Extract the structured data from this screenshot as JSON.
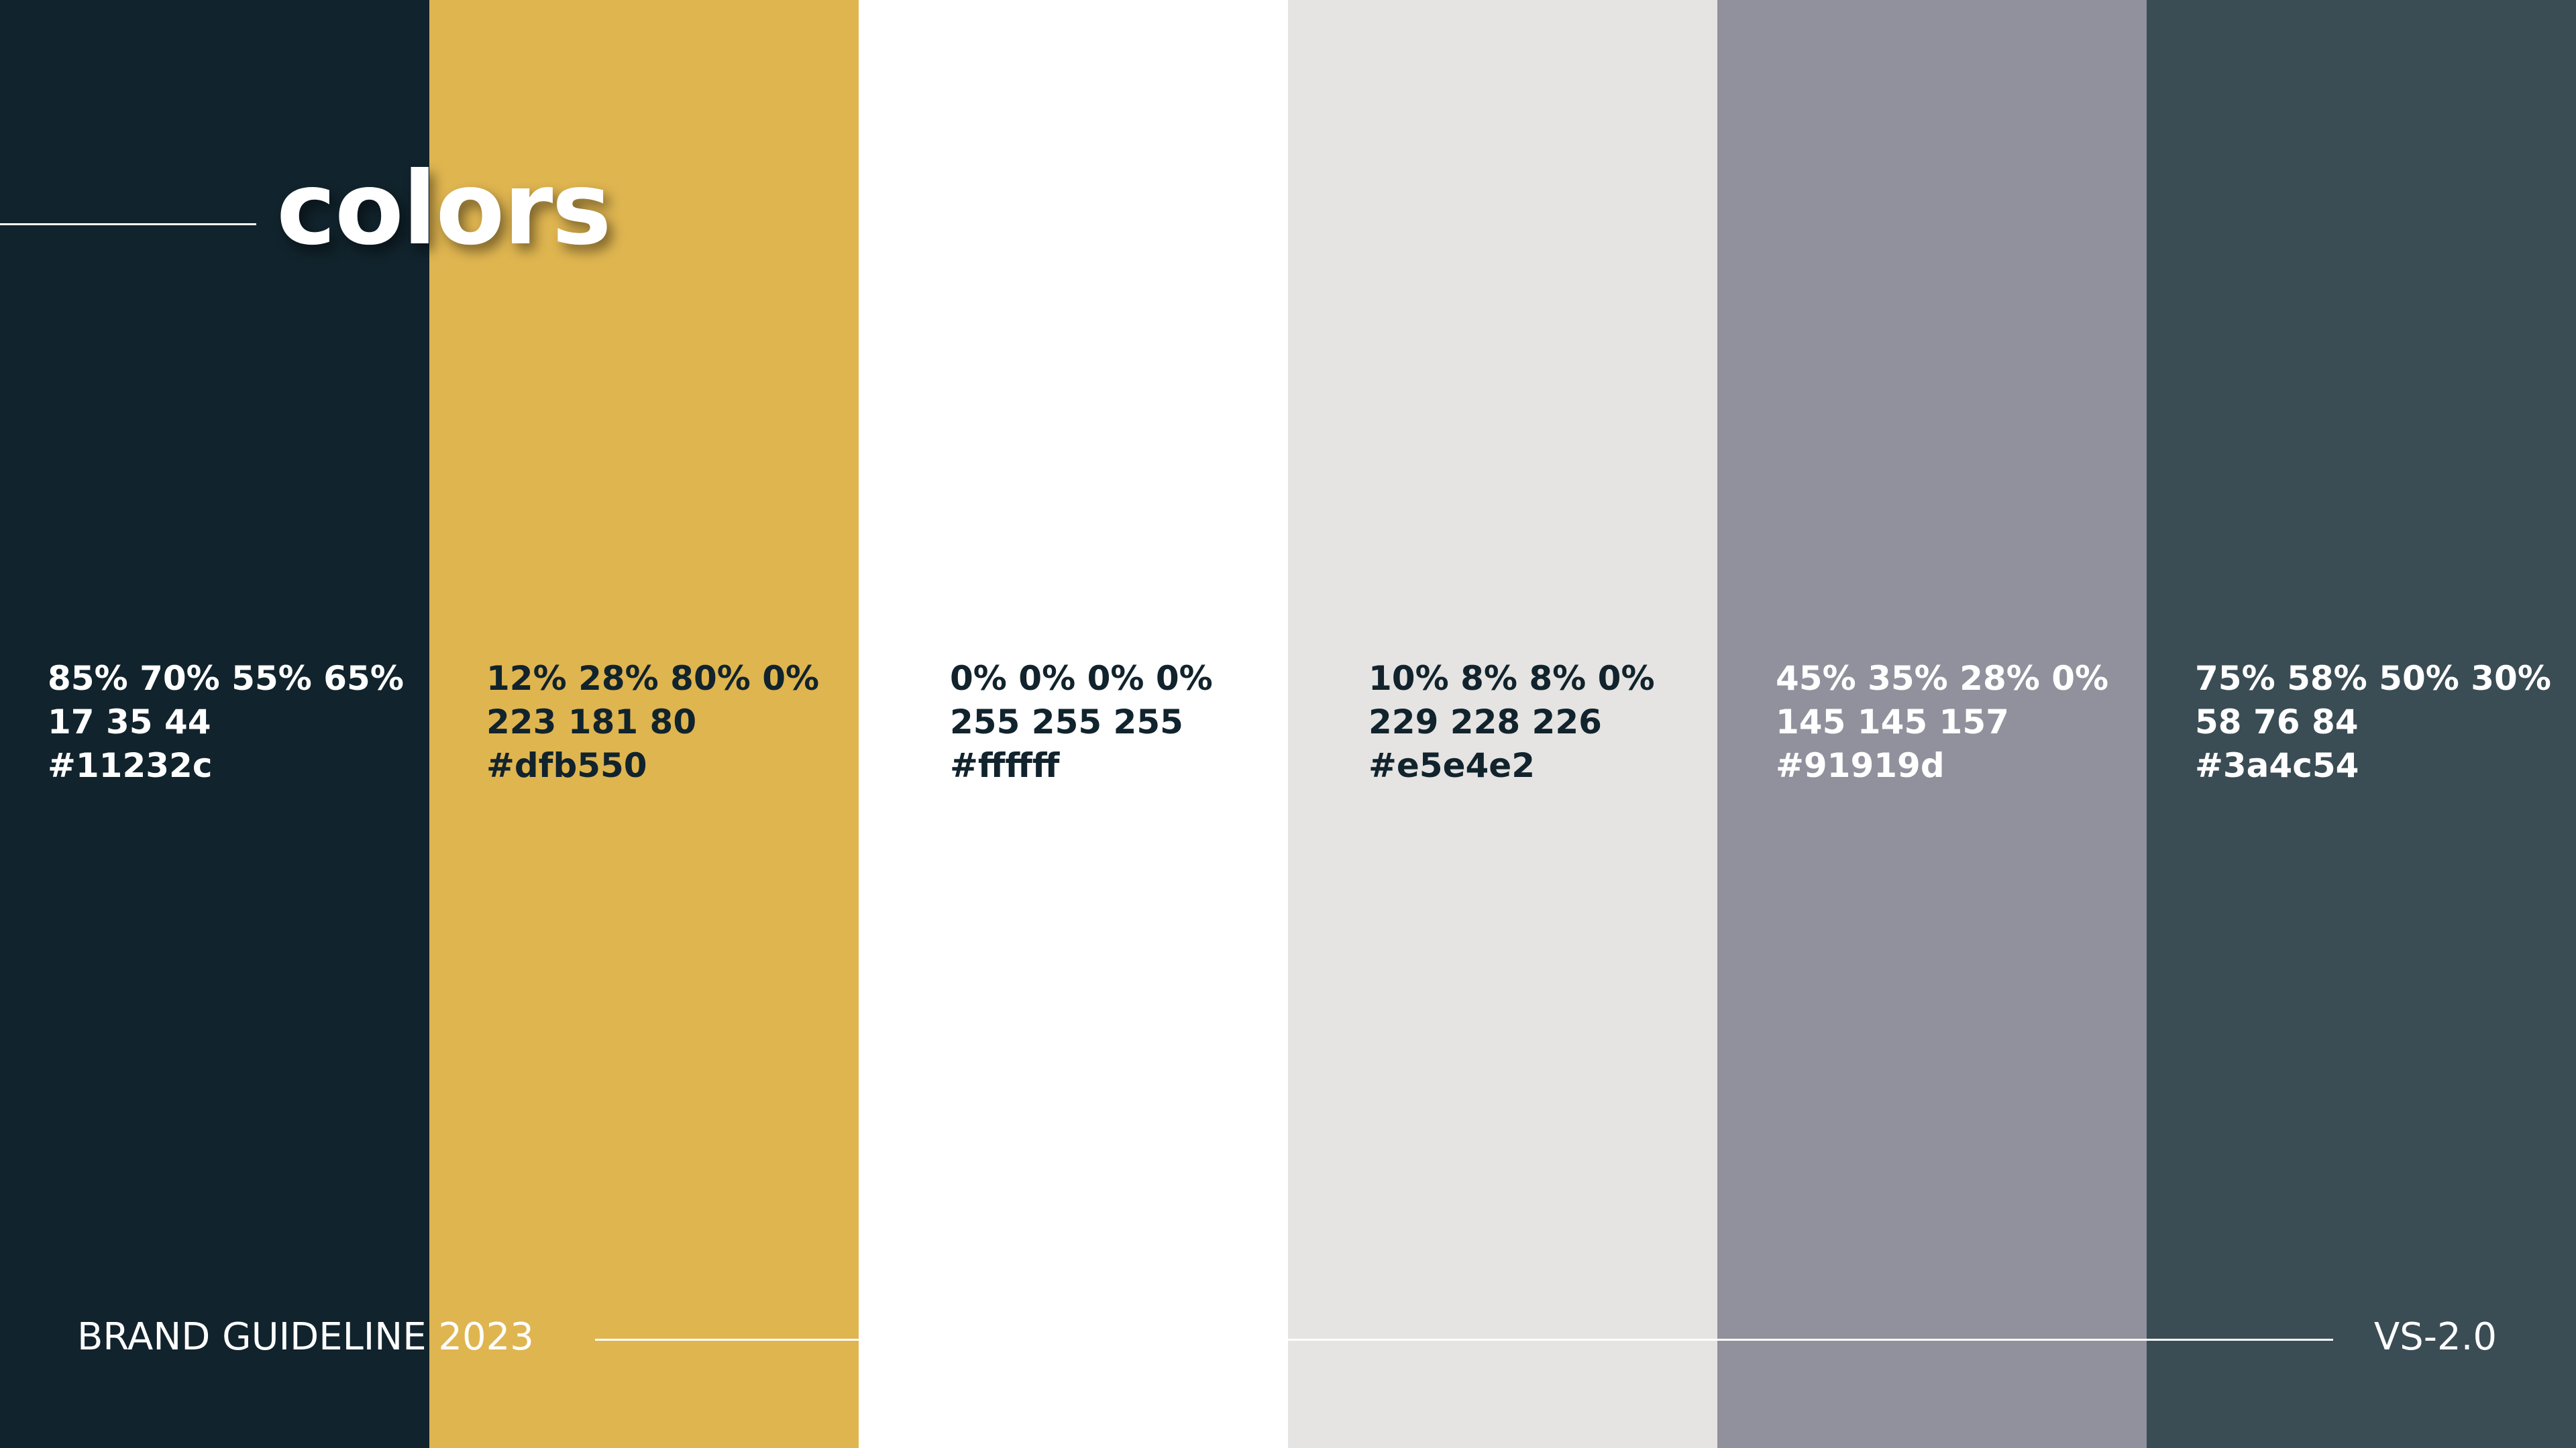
{
  "header": {
    "title": "colors"
  },
  "swatches": [
    {
      "cmyk": "85% 70% 55% 65%",
      "rgb": "17 35 44",
      "hex": "#11232c"
    },
    {
      "cmyk": "12% 28% 80% 0%",
      "rgb": "223 181 80",
      "hex": "#dfb550"
    },
    {
      "cmyk": "0% 0% 0% 0%",
      "rgb": "255 255 255",
      "hex": "#ffffff"
    },
    {
      "cmyk": "10% 8% 8% 0%",
      "rgb": "229 228 226",
      "hex": "#e5e4e2"
    },
    {
      "cmyk": "45% 35% 28% 0%",
      "rgb": "145 145 157",
      "hex": "#91919d"
    },
    {
      "cmyk": "75% 58% 50% 30%",
      "rgb": "58 76 84",
      "hex": "#3a4c54"
    }
  ],
  "footer": {
    "brand": "BRAND GUIDELINE 2023",
    "version": "VS-2.0"
  }
}
